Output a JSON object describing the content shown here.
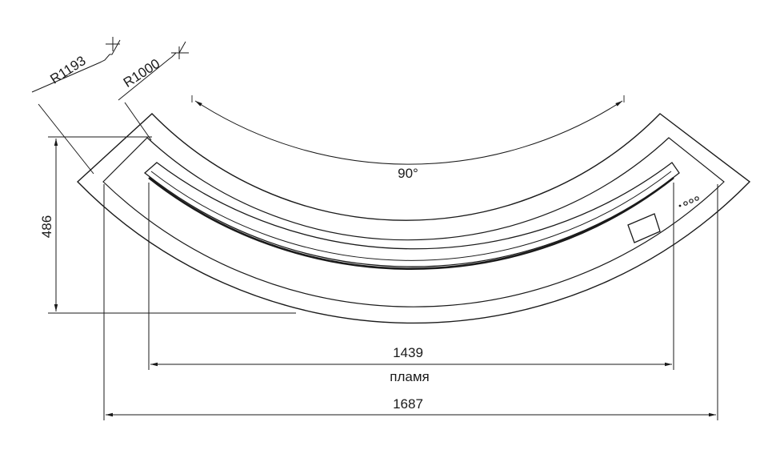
{
  "dimensions": {
    "outer_radius": "R1193",
    "inner_radius": "R1000",
    "angle": "90°",
    "depth": "486",
    "flame_width": "1439",
    "flame_label": "пламя",
    "total_width": "1687"
  },
  "colors": {
    "line": "#1a1a1a",
    "background": "#ffffff"
  }
}
